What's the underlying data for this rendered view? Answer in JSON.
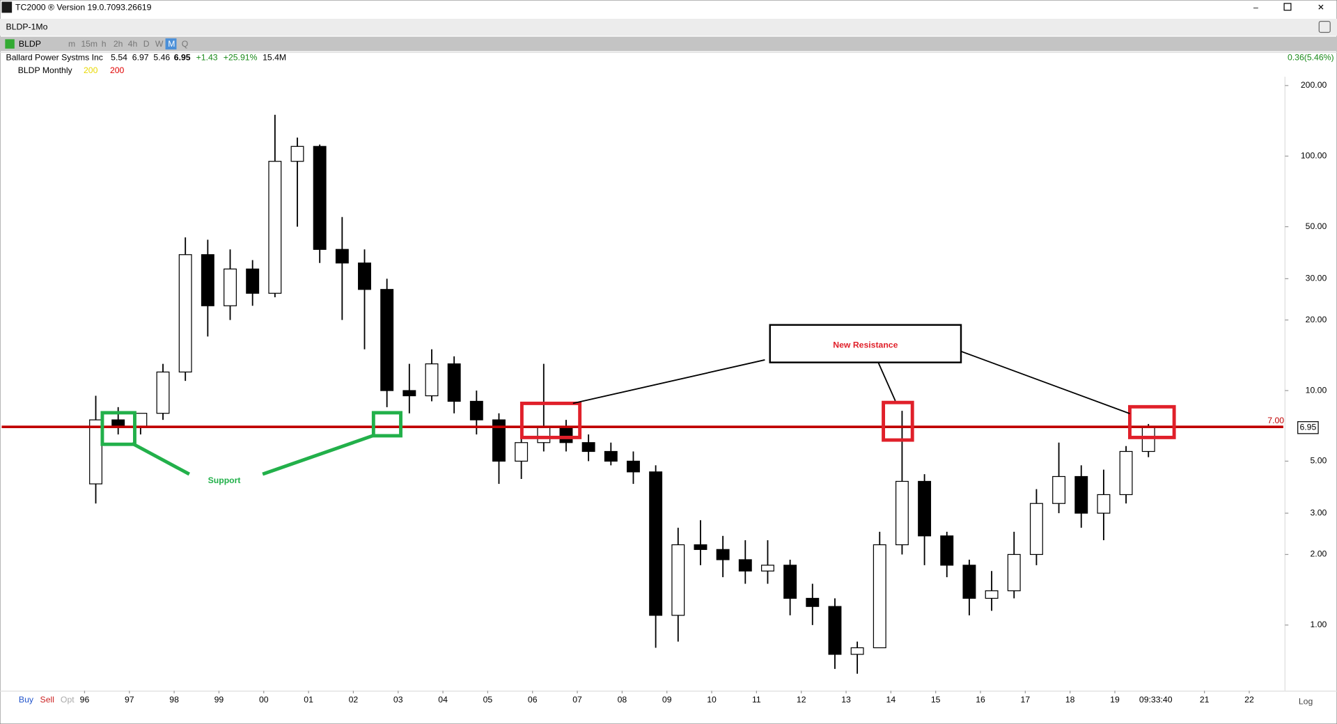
{
  "window": {
    "title": "TC2000 ® Version 19.0.7093.26619"
  },
  "tab": "BLDP-1Mo",
  "toolbar": {
    "symbol": "BLDP",
    "intervals": [
      "m",
      "15m",
      "h",
      "2h",
      "4h",
      "D",
      "W",
      "M",
      "Q"
    ]
  },
  "quote": {
    "name": "Ballard Power Systms Inc",
    "open": "5.54",
    "high": "6.97",
    "low": "5.46",
    "last": "6.95",
    "change": "+1.43",
    "change_pct": "+25.91%",
    "volume": "15.4M",
    "right_change": "0.36(5.46%)"
  },
  "chart_label": {
    "name": "BLDP Monthly",
    "ma1": "200",
    "ma2": "200"
  },
  "chart_data": {
    "type": "candlestick",
    "x": [
      1996.25,
      1996.75,
      1997.25,
      1997.75,
      1998.25,
      1998.75,
      1999.25,
      1999.75,
      2000.25,
      2000.75,
      2001.25,
      2001.75,
      2002.25,
      2002.75,
      2003.25,
      2003.75,
      2004.25,
      2004.75,
      2005.25,
      2005.75,
      2006.25,
      2006.75,
      2007.25,
      2007.75,
      2008.25,
      2008.75,
      2009.25,
      2009.75,
      2010.25,
      2010.75,
      2011.25,
      2011.75,
      2012.25,
      2012.75,
      2013.25,
      2013.75,
      2014.25,
      2014.75,
      2015.25,
      2015.75,
      2016.25,
      2016.75,
      2017.25,
      2017.75,
      2018.25,
      2018.75,
      2019.25,
      2019.75
    ],
    "open": [
      4,
      7.5,
      7,
      8,
      12,
      38,
      23,
      33,
      26,
      95,
      110,
      40,
      35,
      27,
      10,
      9.5,
      13,
      9,
      7.5,
      5,
      6,
      7,
      6,
      5.5,
      5,
      4.5,
      1.1,
      2.2,
      2.1,
      1.9,
      1.7,
      1.8,
      1.3,
      1.2,
      0.75,
      0.8,
      2.2,
      4.1,
      2.4,
      1.8,
      1.3,
      1.4,
      2,
      3.3,
      4.3,
      3,
      3.6,
      5.5
    ],
    "high": [
      9.5,
      8.5,
      8,
      13,
      45,
      44,
      40,
      36,
      150,
      120,
      112,
      55,
      40,
      30,
      13,
      15,
      14,
      10,
      8,
      7,
      13,
      7.5,
      6.5,
      6,
      5.5,
      4.8,
      2.6,
      2.8,
      2.4,
      2.3,
      2.3,
      1.9,
      1.5,
      1.3,
      0.85,
      2.5,
      8.2,
      4.4,
      2.5,
      1.9,
      1.7,
      2.5,
      3.8,
      6,
      4.8,
      4.6,
      5.8,
      7.2
    ],
    "low": [
      3.3,
      6.5,
      6.5,
      7.5,
      11,
      17,
      20,
      23,
      25,
      50,
      35,
      20,
      15,
      8.5,
      8,
      9,
      8,
      6.5,
      4,
      4.2,
      5.5,
      5.5,
      5,
      4.8,
      4,
      0.8,
      0.85,
      1.8,
      1.6,
      1.5,
      1.5,
      1.1,
      1,
      0.65,
      0.62,
      0.8,
      2,
      1.8,
      1.6,
      1.1,
      1.15,
      1.3,
      1.8,
      3,
      2.6,
      2.3,
      3.3,
      5.2
    ],
    "close": [
      7.5,
      7,
      8,
      12,
      38,
      23,
      33,
      26,
      95,
      110,
      40,
      35,
      27,
      10,
      9.5,
      13,
      9,
      7.5,
      5,
      6,
      7,
      6,
      5.5,
      5,
      4.5,
      1.1,
      2.2,
      2.1,
      1.9,
      1.7,
      1.8,
      1.3,
      1.2,
      0.75,
      0.8,
      2.2,
      4.1,
      2.4,
      1.8,
      1.3,
      1.4,
      2,
      3.3,
      4.3,
      3,
      3.6,
      5.5,
      6.95
    ],
    "log_scale": true,
    "ylim": [
      0.547,
      218
    ],
    "yticks": [
      {
        "value": 200,
        "label": "200.00"
      },
      {
        "value": 100,
        "label": "100.00"
      },
      {
        "value": 50,
        "label": "50.00"
      },
      {
        "value": 30,
        "label": "30.00"
      },
      {
        "value": 20,
        "label": "20.00"
      },
      {
        "value": 10,
        "label": "10.00"
      },
      {
        "value": 5,
        "label": "5.00"
      },
      {
        "value": 3,
        "label": "3.00"
      },
      {
        "value": 2,
        "label": "2.00"
      },
      {
        "value": 1,
        "label": "1.00"
      }
    ],
    "xlim": [
      1994.15,
      2022.76
    ],
    "xticks": [
      {
        "value": 1996,
        "label": "96"
      },
      {
        "value": 1997,
        "label": "97"
      },
      {
        "value": 1998,
        "label": "98"
      },
      {
        "value": 1999,
        "label": "99"
      },
      {
        "value": 2000,
        "label": "00"
      },
      {
        "value": 2001,
        "label": "01"
      },
      {
        "value": 2002,
        "label": "02"
      },
      {
        "value": 2003,
        "label": "03"
      },
      {
        "value": 2004,
        "label": "04"
      },
      {
        "value": 2005,
        "label": "05"
      },
      {
        "value": 2006,
        "label": "06"
      },
      {
        "value": 2007,
        "label": "07"
      },
      {
        "value": 2008,
        "label": "08"
      },
      {
        "value": 2009,
        "label": "09"
      },
      {
        "value": 2010,
        "label": "10"
      },
      {
        "value": 2011,
        "label": "11"
      },
      {
        "value": 2012,
        "label": "12"
      },
      {
        "value": 2013,
        "label": "13"
      },
      {
        "value": 2014,
        "label": "14"
      },
      {
        "value": 2015,
        "label": "15"
      },
      {
        "value": 2016,
        "label": "16"
      },
      {
        "value": 2017,
        "label": "17"
      },
      {
        "value": 2018,
        "label": "18"
      },
      {
        "value": 2019,
        "label": "19"
      },
      {
        "value": 2021,
        "label": "21"
      },
      {
        "value": 2022,
        "label": "22"
      }
    ],
    "color": "#000000",
    "reference_line": {
      "value": 7,
      "label": "7.00",
      "color": "#c00000"
    },
    "last_price": {
      "value": 6.95,
      "label": "6.95"
    },
    "annotations": {
      "resistance": "New Resistance",
      "support": "Support"
    }
  },
  "bottom_bar": {
    "buy": "Buy",
    "sell": "Sell",
    "opt": "Opt",
    "time": "09:33:40",
    "scale": "Log"
  }
}
